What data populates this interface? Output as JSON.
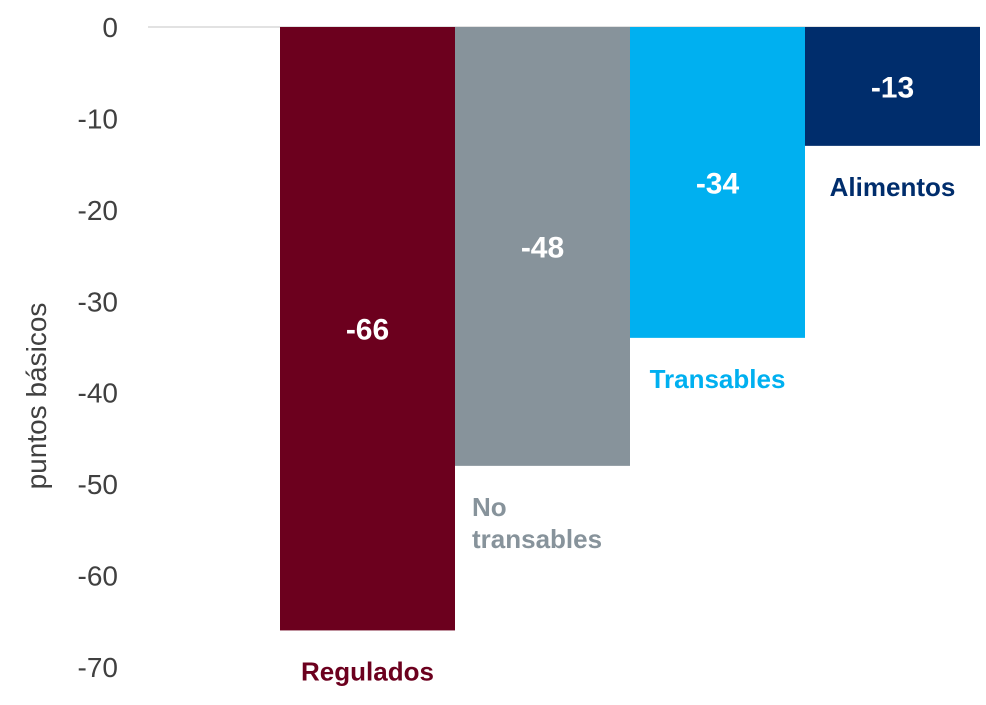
{
  "chart_data": {
    "type": "bar",
    "title": "",
    "xlabel": "",
    "ylabel": "puntos básicos",
    "ylim": [
      -70,
      0
    ],
    "yticks": [
      0,
      -10,
      -20,
      -30,
      -40,
      -50,
      -60,
      -70
    ],
    "grid": false,
    "categories": [
      "Regulados",
      "No transables",
      "Transables",
      "Alimentos"
    ],
    "category_lines": [
      [
        "Regulados"
      ],
      [
        "No",
        "transables"
      ],
      [
        "Transables"
      ],
      [
        "Alimentos"
      ]
    ],
    "values": [
      -66,
      -48,
      -34,
      -13
    ],
    "data_labels": [
      "-66",
      "-48",
      "-34",
      "-13"
    ],
    "colors": [
      "#6c001e",
      "#87939b",
      "#00b0f0",
      "#002d6c"
    ],
    "label_colors": [
      "#6c001e",
      "#87939b",
      "#00b0f0",
      "#002d6c"
    ]
  }
}
